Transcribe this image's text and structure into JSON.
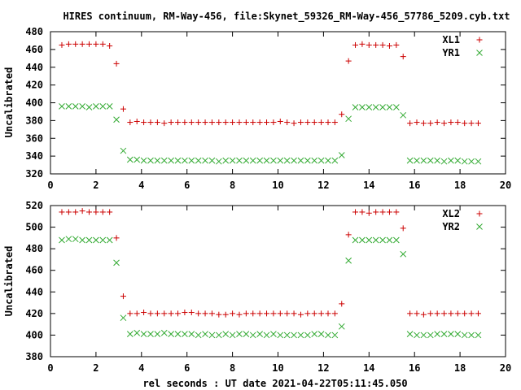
{
  "title": "HIRES continuum, RM-Way-456, file:Skynet_59326_RM-Way-456_57786_5209.cyb.txt",
  "xlabel": "rel seconds : UT date 2021-04-22T05:11:45.050",
  "colors": {
    "plus_series": "#cc0000",
    "x_series": "#33aa33"
  },
  "chart_data": [
    {
      "type": "scatter",
      "ylabel": "Uncalibrated",
      "xlim": [
        0,
        20
      ],
      "ylim": [
        320,
        480
      ],
      "xticks": [
        0,
        2,
        4,
        6,
        8,
        10,
        12,
        14,
        16,
        18,
        20
      ],
      "yticks": [
        320,
        340,
        360,
        380,
        400,
        420,
        440,
        460,
        480
      ],
      "legend_position": "top-right",
      "x": [
        0.5,
        0.8,
        1.1,
        1.4,
        1.7,
        2.0,
        2.3,
        2.6,
        2.9,
        3.2,
        3.5,
        3.8,
        4.1,
        4.4,
        4.7,
        5.0,
        5.3,
        5.6,
        5.9,
        6.2,
        6.5,
        6.8,
        7.1,
        7.4,
        7.7,
        8.0,
        8.3,
        8.6,
        8.9,
        9.2,
        9.5,
        9.8,
        10.1,
        10.4,
        10.7,
        11.0,
        11.3,
        11.6,
        11.9,
        12.2,
        12.5,
        12.8,
        13.1,
        13.4,
        13.7,
        14.0,
        14.3,
        14.6,
        14.9,
        15.2,
        15.5,
        15.8,
        16.1,
        16.4,
        16.7,
        17.0,
        17.3,
        17.6,
        17.9,
        18.2,
        18.5,
        18.8
      ],
      "series": [
        {
          "name": "XL1",
          "marker": "plus",
          "values": [
            465,
            466,
            466,
            466,
            466,
            466,
            466,
            464,
            444,
            393,
            378,
            379,
            378,
            378,
            378,
            377,
            378,
            378,
            378,
            378,
            378,
            378,
            378,
            378,
            378,
            378,
            378,
            378,
            378,
            378,
            378,
            378,
            379,
            378,
            377,
            378,
            378,
            378,
            378,
            378,
            378,
            387,
            447,
            465,
            466,
            465,
            465,
            465,
            464,
            465,
            452,
            377,
            378,
            377,
            377,
            378,
            377,
            378,
            378,
            377,
            377,
            377
          ]
        },
        {
          "name": "YR1",
          "marker": "x",
          "values": [
            396,
            396,
            396,
            396,
            395,
            396,
            396,
            396,
            381,
            346,
            336,
            336,
            335,
            335,
            335,
            335,
            335,
            335,
            335,
            335,
            335,
            335,
            335,
            334,
            335,
            335,
            335,
            335,
            335,
            335,
            335,
            335,
            335,
            335,
            335,
            335,
            335,
            335,
            335,
            335,
            335,
            341,
            382,
            395,
            395,
            395,
            395,
            395,
            395,
            395,
            386,
            335,
            335,
            335,
            335,
            335,
            334,
            335,
            335,
            334,
            334,
            334
          ]
        }
      ]
    },
    {
      "type": "scatter",
      "ylabel": "Uncalibrated",
      "xlim": [
        0,
        20
      ],
      "ylim": [
        380,
        520
      ],
      "xticks": [
        0,
        2,
        4,
        6,
        8,
        10,
        12,
        14,
        16,
        18,
        20
      ],
      "yticks": [
        380,
        400,
        420,
        440,
        460,
        480,
        500,
        520
      ],
      "legend_position": "top-right",
      "x": [
        0.5,
        0.8,
        1.1,
        1.4,
        1.7,
        2.0,
        2.3,
        2.6,
        2.9,
        3.2,
        3.5,
        3.8,
        4.1,
        4.4,
        4.7,
        5.0,
        5.3,
        5.6,
        5.9,
        6.2,
        6.5,
        6.8,
        7.1,
        7.4,
        7.7,
        8.0,
        8.3,
        8.6,
        8.9,
        9.2,
        9.5,
        9.8,
        10.1,
        10.4,
        10.7,
        11.0,
        11.3,
        11.6,
        11.9,
        12.2,
        12.5,
        12.8,
        13.1,
        13.4,
        13.7,
        14.0,
        14.3,
        14.6,
        14.9,
        15.2,
        15.5,
        15.8,
        16.1,
        16.4,
        16.7,
        17.0,
        17.3,
        17.6,
        17.9,
        18.2,
        18.5,
        18.8
      ],
      "series": [
        {
          "name": "XL2",
          "marker": "plus",
          "values": [
            514,
            514,
            514,
            515,
            514,
            514,
            514,
            514,
            490,
            436,
            420,
            420,
            421,
            420,
            420,
            420,
            420,
            420,
            421,
            421,
            420,
            420,
            420,
            419,
            419,
            420,
            419,
            420,
            420,
            420,
            420,
            420,
            420,
            420,
            420,
            419,
            420,
            420,
            420,
            420,
            420,
            429,
            493,
            514,
            514,
            513,
            514,
            514,
            514,
            514,
            499,
            420,
            420,
            419,
            420,
            420,
            420,
            420,
            420,
            420,
            420,
            420
          ]
        },
        {
          "name": "YR2",
          "marker": "x",
          "values": [
            488,
            489,
            489,
            488,
            488,
            488,
            488,
            488,
            467,
            416,
            401,
            402,
            401,
            401,
            401,
            402,
            401,
            401,
            401,
            401,
            400,
            401,
            400,
            400,
            401,
            400,
            401,
            401,
            400,
            401,
            400,
            401,
            400,
            400,
            400,
            400,
            400,
            401,
            401,
            400,
            400,
            408,
            469,
            488,
            488,
            488,
            488,
            488,
            488,
            488,
            475,
            401,
            400,
            400,
            400,
            401,
            401,
            401,
            401,
            400,
            400,
            400
          ]
        }
      ]
    }
  ]
}
